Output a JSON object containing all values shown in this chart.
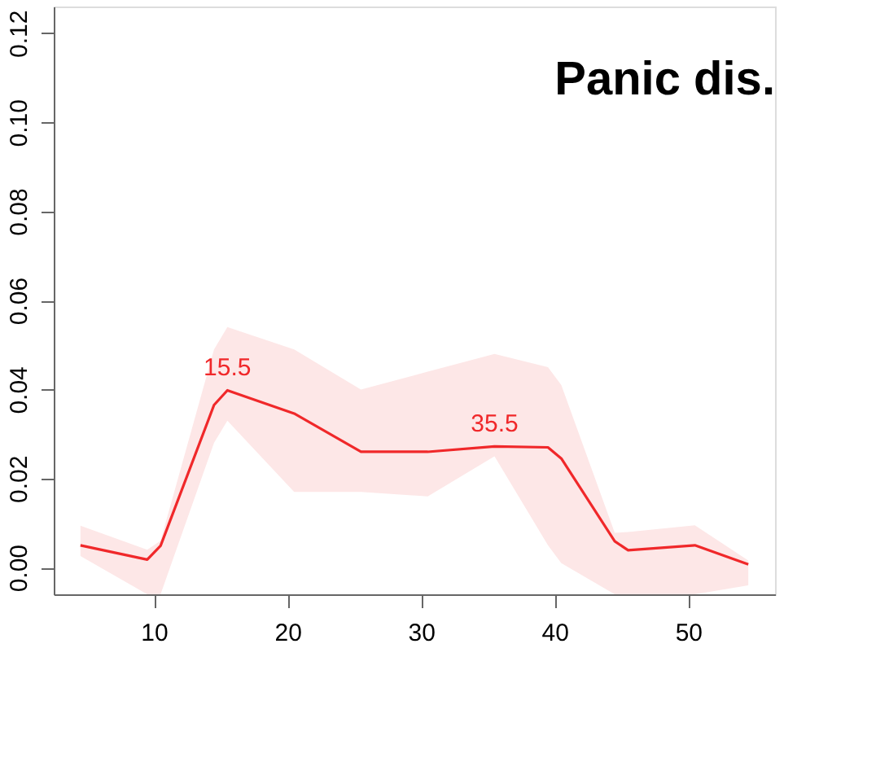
{
  "chart_data": {
    "type": "line",
    "title": "Panic dis.",
    "x": [
      4.5,
      9.5,
      10.5,
      14.5,
      15.5,
      20.5,
      25.5,
      30.5,
      35.5,
      39.5,
      40.5,
      44.5,
      45.5,
      50.5,
      54.5
    ],
    "series": [
      {
        "color": "#f0282a",
        "values": [
          0.005,
          0.0018,
          0.0049,
          0.0365,
          0.0398,
          0.0346,
          0.026,
          0.026,
          0.0272,
          0.027,
          0.0245,
          0.0059,
          0.0039,
          0.005,
          0.0007
        ],
        "lower": [
          0.0026,
          -0.006,
          -0.006,
          0.028,
          0.033,
          0.017,
          0.017,
          0.016,
          0.025,
          0.005,
          0.001,
          -0.006,
          -0.006,
          -0.006,
          -0.004
        ],
        "upper": [
          0.0094,
          0.004,
          0.006,
          0.049,
          0.054,
          0.049,
          0.04,
          0.044,
          0.048,
          0.045,
          0.041,
          0.0078,
          0.008,
          0.0095,
          0.0016
        ]
      }
    ],
    "xlim": [
      2.5,
      56.5
    ],
    "xticks": [
      10,
      20,
      30,
      40,
      50
    ],
    "ylim": [
      -0.006,
      0.126
    ],
    "yticks": [
      {
        "value": 0,
        "label": "0.00"
      },
      {
        "value": 0.02,
        "label": "0.02"
      },
      {
        "value": 0.04,
        "label": "0.04"
      },
      {
        "value": 0.06,
        "label": "0.06"
      },
      {
        "value": 0.08,
        "label": "0.08"
      },
      {
        "value": 0.1,
        "label": "0.10"
      },
      {
        "value": 0.12,
        "label": "0.12"
      }
    ],
    "annotations": [
      {
        "text": "15.5",
        "x": 15.5,
        "y": 0.0398
      },
      {
        "text": "35.5",
        "x": 35.5,
        "y": 0.0272
      }
    ],
    "grid": false,
    "marker": "none",
    "line_style": "solid"
  }
}
